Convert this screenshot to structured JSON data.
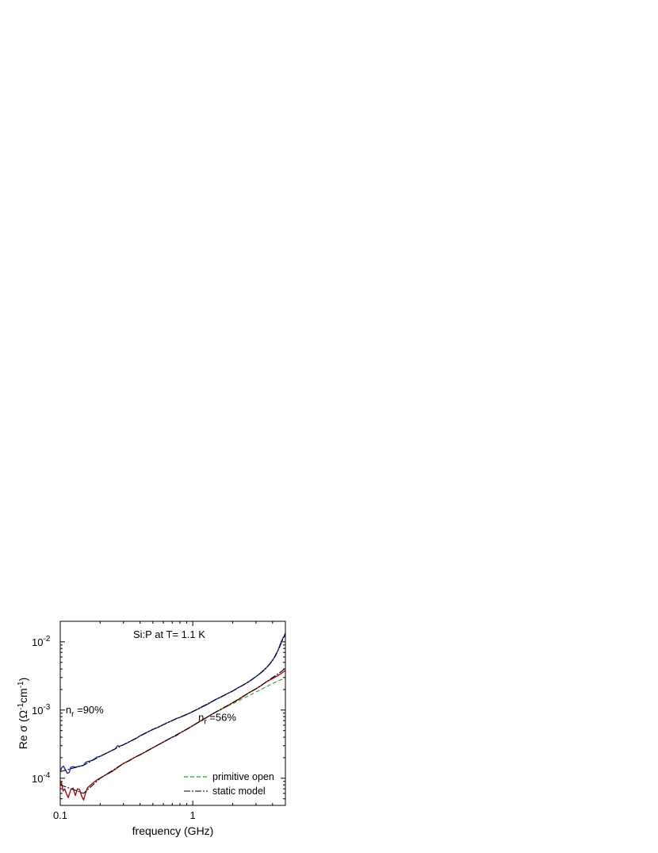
{
  "chart_data": {
    "type": "line",
    "title": "Si:P at T= 1.1 K",
    "xlabel": "frequency (GHz)",
    "ylabel": {
      "base": "Re σ (Ω",
      "exp1": "-1",
      "mid": "cm",
      "exp2": "-1",
      "end": ")"
    },
    "x_scale": "log",
    "y_scale": "log",
    "xlim": [
      0.1,
      5.0
    ],
    "ylim": [
      4e-05,
      0.02
    ],
    "x_ticks": [
      {
        "value": 0.1,
        "label": "0.1"
      },
      {
        "value": 1,
        "label": "1"
      }
    ],
    "y_ticks": [
      {
        "value": 0.0001,
        "base": "10",
        "exp": "-4"
      },
      {
        "value": 0.001,
        "base": "10",
        "exp": "-3"
      },
      {
        "value": 0.01,
        "base": "10",
        "exp": "-2"
      }
    ],
    "annotations": [
      {
        "base": "n",
        "sub": "r",
        "rest": " =90%",
        "x": 0.11,
        "y": 0.0009
      },
      {
        "base": "n",
        "sub": "r",
        "rest": " =56%",
        "x": 1.1,
        "y": 0.00069
      }
    ],
    "series": [
      {
        "key": "s90_data",
        "color": "#1f2fa8",
        "dash": "",
        "points": [
          [
            0.1,
            0.000125
          ],
          [
            0.103,
            0.000145
          ],
          [
            0.106,
            0.00015
          ],
          [
            0.11,
            0.00013
          ],
          [
            0.113,
            0.000118
          ],
          [
            0.117,
            0.000122
          ],
          [
            0.12,
            0.000145
          ],
          [
            0.125,
            0.000148
          ],
          [
            0.13,
            0.000145
          ],
          [
            0.135,
            0.000148
          ],
          [
            0.14,
            0.00015
          ],
          [
            0.145,
            0.000152
          ],
          [
            0.15,
            0.000155
          ],
          [
            0.155,
            0.00017
          ],
          [
            0.16,
            0.000175
          ],
          [
            0.17,
            0.00018
          ],
          [
            0.18,
            0.00019
          ],
          [
            0.19,
            0.000205
          ],
          [
            0.2,
            0.00021
          ],
          [
            0.22,
            0.00023
          ],
          [
            0.24,
            0.00025
          ],
          [
            0.26,
            0.00027
          ],
          [
            0.27,
            0.0003
          ],
          [
            0.28,
            0.000295
          ],
          [
            0.3,
            0.00031
          ],
          [
            0.32,
            0.00033
          ],
          [
            0.35,
            0.00036
          ],
          [
            0.38,
            0.00039
          ],
          [
            0.4,
            0.00042
          ],
          [
            0.43,
            0.00045
          ],
          [
            0.46,
            0.00048
          ],
          [
            0.5,
            0.00052
          ],
          [
            0.55,
            0.00056
          ],
          [
            0.6,
            0.00061
          ],
          [
            0.65,
            0.00066
          ],
          [
            0.7,
            0.0007
          ],
          [
            0.75,
            0.00075
          ],
          [
            0.8,
            0.00078
          ],
          [
            0.9,
            0.00086
          ],
          [
            1.0,
            0.00095
          ],
          [
            1.1,
            0.00104
          ],
          [
            1.2,
            0.00113
          ],
          [
            1.3,
            0.00122
          ],
          [
            1.4,
            0.00133
          ],
          [
            1.5,
            0.00144
          ],
          [
            1.6,
            0.00152
          ],
          [
            1.8,
            0.00172
          ],
          [
            2.0,
            0.0019
          ],
          [
            2.2,
            0.00212
          ],
          [
            2.4,
            0.00232
          ],
          [
            2.6,
            0.00255
          ],
          [
            2.8,
            0.0028
          ],
          [
            3.0,
            0.0031
          ],
          [
            3.2,
            0.0034
          ],
          [
            3.4,
            0.0038
          ],
          [
            3.6,
            0.0042
          ],
          [
            3.8,
            0.0047
          ],
          [
            4.0,
            0.0054
          ],
          [
            4.2,
            0.0062
          ],
          [
            4.4,
            0.0075
          ],
          [
            4.6,
            0.0095
          ],
          [
            4.8,
            0.0115
          ],
          [
            5.0,
            0.0122
          ]
        ]
      },
      {
        "key": "s56_data",
        "color": "#a01010",
        "dash": "",
        "points": [
          [
            0.1,
            8e-05
          ],
          [
            0.102,
            8.8e-05
          ],
          [
            0.105,
            6.5e-05
          ],
          [
            0.108,
            7e-05
          ],
          [
            0.112,
            5.8e-05
          ],
          [
            0.115,
            5.2e-05
          ],
          [
            0.12,
            6.8e-05
          ],
          [
            0.125,
            7.2e-05
          ],
          [
            0.13,
            5.6e-05
          ],
          [
            0.135,
            7e-05
          ],
          [
            0.14,
            6.8e-05
          ],
          [
            0.145,
            5.5e-05
          ],
          [
            0.15,
            4.8e-05
          ],
          [
            0.155,
            6e-05
          ],
          [
            0.16,
            7.2e-05
          ],
          [
            0.17,
            8e-05
          ],
          [
            0.18,
            8.8e-05
          ],
          [
            0.19,
            9.5e-05
          ],
          [
            0.2,
            0.0001
          ],
          [
            0.22,
            0.000112
          ],
          [
            0.24,
            0.000122
          ],
          [
            0.26,
            0.000135
          ],
          [
            0.28,
            0.00015
          ],
          [
            0.3,
            0.000165
          ],
          [
            0.33,
            0.00018
          ],
          [
            0.36,
            0.0002
          ],
          [
            0.4,
            0.00022
          ],
          [
            0.45,
            0.00025
          ],
          [
            0.5,
            0.00028
          ],
          [
            0.55,
            0.00031
          ],
          [
            0.6,
            0.00034
          ],
          [
            0.65,
            0.00037
          ],
          [
            0.7,
            0.0004
          ],
          [
            0.75,
            0.00042
          ],
          [
            0.8,
            0.00046
          ],
          [
            0.9,
            0.00052
          ],
          [
            1.0,
            0.00059
          ],
          [
            1.1,
            0.00066
          ],
          [
            1.2,
            0.00073
          ],
          [
            1.3,
            0.0008
          ],
          [
            1.4,
            0.00087
          ],
          [
            1.5,
            0.00094
          ],
          [
            1.6,
            0.001
          ],
          [
            1.8,
            0.00113
          ],
          [
            2.0,
            0.00128
          ],
          [
            2.2,
            0.00142
          ],
          [
            2.4,
            0.00158
          ],
          [
            2.6,
            0.00175
          ],
          [
            2.8,
            0.0019
          ],
          [
            3.0,
            0.00205
          ],
          [
            3.3,
            0.0023
          ],
          [
            3.6,
            0.0026
          ],
          [
            4.0,
            0.0029
          ],
          [
            4.4,
            0.0032
          ],
          [
            4.8,
            0.0036
          ],
          [
            5.0,
            0.0038
          ]
        ]
      },
      {
        "key": "s56_primitive_open",
        "color": "#22a022",
        "dash": "5,3",
        "points": [
          [
            1.5,
            0.00094
          ],
          [
            1.8,
            0.00112
          ],
          [
            2.0,
            0.00124
          ],
          [
            2.4,
            0.00148
          ],
          [
            2.8,
            0.00172
          ],
          [
            3.2,
            0.00196
          ],
          [
            3.6,
            0.0022
          ],
          [
            4.0,
            0.00245
          ],
          [
            4.5,
            0.00272
          ],
          [
            5.0,
            0.00295
          ]
        ]
      },
      {
        "key": "s90_static_model",
        "color": "#000000",
        "dash": "8,2,2,2",
        "points": [
          [
            0.1,
            0.000125
          ],
          [
            0.15,
            0.000155
          ],
          [
            0.2,
            0.00021
          ],
          [
            0.3,
            0.00031
          ],
          [
            0.5,
            0.00052
          ],
          [
            0.7,
            0.0007
          ],
          [
            1.0,
            0.00095
          ],
          [
            1.5,
            0.00144
          ],
          [
            2.0,
            0.0019
          ],
          [
            2.6,
            0.00255
          ],
          [
            3.0,
            0.0031
          ],
          [
            3.5,
            0.0039
          ],
          [
            4.0,
            0.0053
          ],
          [
            4.5,
            0.0082
          ],
          [
            5.0,
            0.0135
          ]
        ]
      },
      {
        "key": "s56_static_model",
        "color": "#000000",
        "dash": "8,2,2,2",
        "points": [
          [
            0.1,
            8e-05
          ],
          [
            0.15,
            6e-05
          ],
          [
            0.2,
            0.0001
          ],
          [
            0.3,
            0.000165
          ],
          [
            0.5,
            0.00028
          ],
          [
            0.7,
            0.0004
          ],
          [
            1.0,
            0.00059
          ],
          [
            1.5,
            0.00094
          ],
          [
            2.0,
            0.00128
          ],
          [
            2.6,
            0.00175
          ],
          [
            3.0,
            0.00205
          ],
          [
            3.5,
            0.0025
          ],
          [
            4.0,
            0.003
          ],
          [
            4.5,
            0.0035
          ],
          [
            5.0,
            0.0041
          ]
        ]
      }
    ],
    "legend": {
      "position": "bottom-right",
      "items": [
        {
          "label": "primitive open",
          "color": "#22a022",
          "dash": "5,3"
        },
        {
          "label": "static model",
          "color": "#000000",
          "dash": "8,2,2,2"
        }
      ]
    },
    "grid": false
  }
}
